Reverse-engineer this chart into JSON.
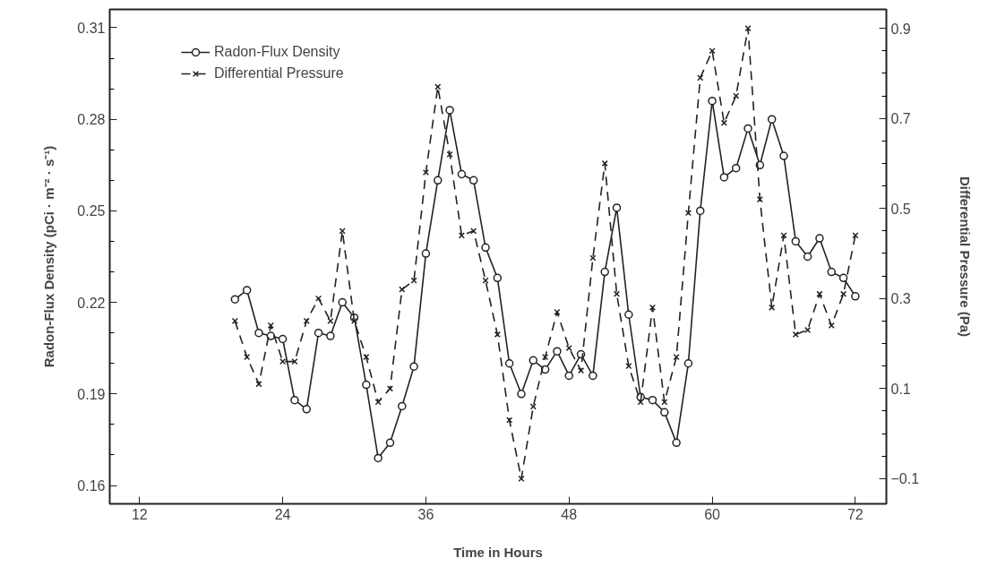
{
  "chart_data": {
    "type": "line",
    "xlabel": "Time in Hours",
    "ylabel": "Radon-Flux Density (pCi · m⁻² · s⁻¹)",
    "y2label": "Differential Pressure (Pa)",
    "x": [
      20,
      21,
      22,
      23,
      24,
      25,
      26,
      27,
      28,
      29,
      30,
      31,
      32,
      33,
      34,
      35,
      36,
      37,
      38,
      39,
      40,
      41,
      42,
      43,
      44,
      45,
      46,
      47,
      48,
      49,
      50,
      51,
      52,
      53,
      54,
      55,
      56,
      57,
      58,
      59,
      60,
      61,
      62,
      63,
      64,
      65,
      66,
      67,
      68,
      69,
      70,
      71,
      72
    ],
    "series": [
      {
        "name": "Radon-Flux Density",
        "color": "#222222",
        "marker": "circle",
        "line_style": "solid",
        "values": [
          0.221,
          0.224,
          0.21,
          0.209,
          0.208,
          0.188,
          0.185,
          0.21,
          0.209,
          0.22,
          0.215,
          0.193,
          0.169,
          0.174,
          0.186,
          0.199,
          0.236,
          0.26,
          0.283,
          0.262,
          0.26,
          0.238,
          0.228,
          0.2,
          0.19,
          0.201,
          0.198,
          0.204,
          0.196,
          0.203,
          0.196,
          0.23,
          0.251,
          0.216,
          0.189,
          0.188,
          0.184,
          0.174,
          0.2,
          0.25,
          0.286,
          0.261,
          0.264,
          0.277,
          0.265,
          0.28,
          0.268,
          0.24,
          0.235,
          0.241,
          0.23,
          0.228,
          0.222
        ]
      },
      {
        "name": "Differential Pressure",
        "color": "#222222",
        "marker": "cross",
        "line_style": "dashed",
        "axis": "y2",
        "values": [
          0.25,
          0.17,
          0.11,
          0.24,
          0.16,
          0.16,
          0.25,
          0.3,
          0.25,
          0.45,
          0.25,
          0.17,
          0.07,
          0.1,
          0.32,
          0.34,
          0.58,
          0.77,
          0.62,
          0.44,
          0.45,
          0.34,
          0.22,
          0.03,
          -0.1,
          0.06,
          0.17,
          0.27,
          0.19,
          0.14,
          0.39,
          0.6,
          0.31,
          0.15,
          0.07,
          0.28,
          0.07,
          0.17,
          0.49,
          0.79,
          0.85,
          0.69,
          0.75,
          0.9,
          0.52,
          0.28,
          0.44,
          0.22,
          0.23,
          0.31,
          0.24,
          0.31,
          0.44
        ]
      }
    ],
    "xlim": [
      9.5,
      74.6
    ],
    "ylim": [
      0.154,
      0.316
    ],
    "y2lim": [
      -0.156,
      0.942
    ],
    "xticks": [
      12,
      24,
      36,
      48,
      60,
      72
    ],
    "yticks": [
      0.16,
      {
        "value": 0.17,
        "label": null
      },
      {
        "value": 0.18,
        "label": null
      },
      0.19,
      {
        "value": 0.2,
        "label": null
      },
      {
        "value": 0.21,
        "label": null
      },
      0.22,
      {
        "value": 0.23,
        "label": null
      },
      {
        "value": 0.24,
        "label": null
      },
      0.25,
      {
        "value": 0.26,
        "label": null
      },
      {
        "value": 0.27,
        "label": null
      },
      0.28,
      {
        "value": 0.29,
        "label": null
      },
      {
        "value": 0.3,
        "label": null
      },
      0.31
    ],
    "y2ticks": [
      {
        "value": -0.1,
        "label": "−0.1"
      },
      {
        "value": -0.05,
        "label": null
      },
      {
        "value": 0,
        "label": null
      },
      {
        "value": 0.05,
        "label": null
      },
      0.1,
      {
        "value": 0.15,
        "label": null
      },
      {
        "value": 0.2,
        "label": null
      },
      {
        "value": 0.25,
        "label": null
      },
      0.3,
      {
        "value": 0.35,
        "label": null
      },
      {
        "value": 0.4,
        "label": null
      },
      {
        "value": 0.45,
        "label": null
      },
      0.5,
      {
        "value": 0.55,
        "label": null
      },
      {
        "value": 0.6,
        "label": null
      },
      {
        "value": 0.65,
        "label": null
      },
      0.7,
      {
        "value": 0.75,
        "label": null
      },
      {
        "value": 0.8,
        "label": null
      },
      {
        "value": 0.85,
        "label": null
      },
      0.9
    ],
    "legend": "top left",
    "grid": false
  }
}
